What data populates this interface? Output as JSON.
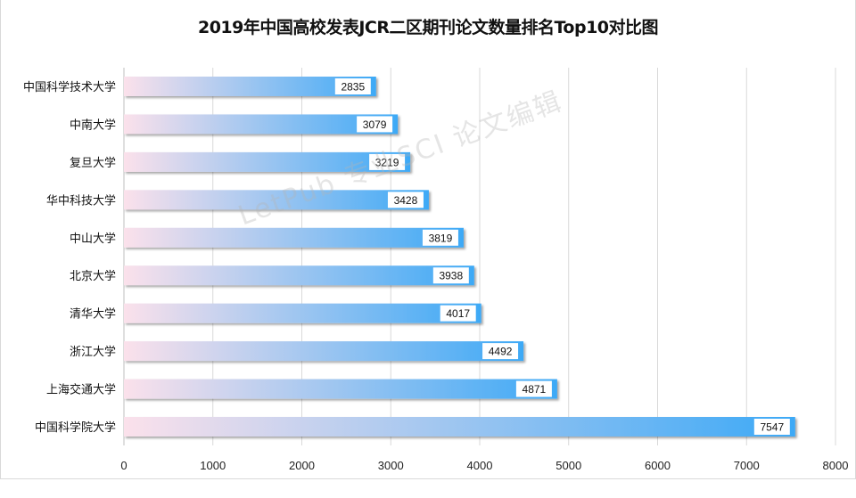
{
  "chart_data": {
    "type": "bar",
    "orientation": "horizontal",
    "title": "2019年中国高校发表JCR二区期刊论文数量排名Top10对比图",
    "categories": [
      "中国科学技术大学",
      "中南大学",
      "复旦大学",
      "华中科技大学",
      "中山大学",
      "北京大学",
      "清华大学",
      "浙江大学",
      "上海交通大学",
      "中国科学院大学"
    ],
    "values": [
      2835,
      3079,
      3219,
      3428,
      3819,
      3938,
      4017,
      4492,
      4871,
      7547
    ],
    "xlim": [
      0,
      8000
    ],
    "xticks": [
      0,
      1000,
      2000,
      3000,
      4000,
      5000,
      6000,
      7000,
      8000
    ],
    "grid": true,
    "xlabel": "",
    "ylabel": "",
    "colors": {
      "gradient_start": "#fbe1eb",
      "gradient_end": "#3da9f6",
      "grid": "#d9d9d9",
      "axis": "#bfbfbf"
    }
  },
  "watermark": "LetPub 专业SCI 论文编辑"
}
